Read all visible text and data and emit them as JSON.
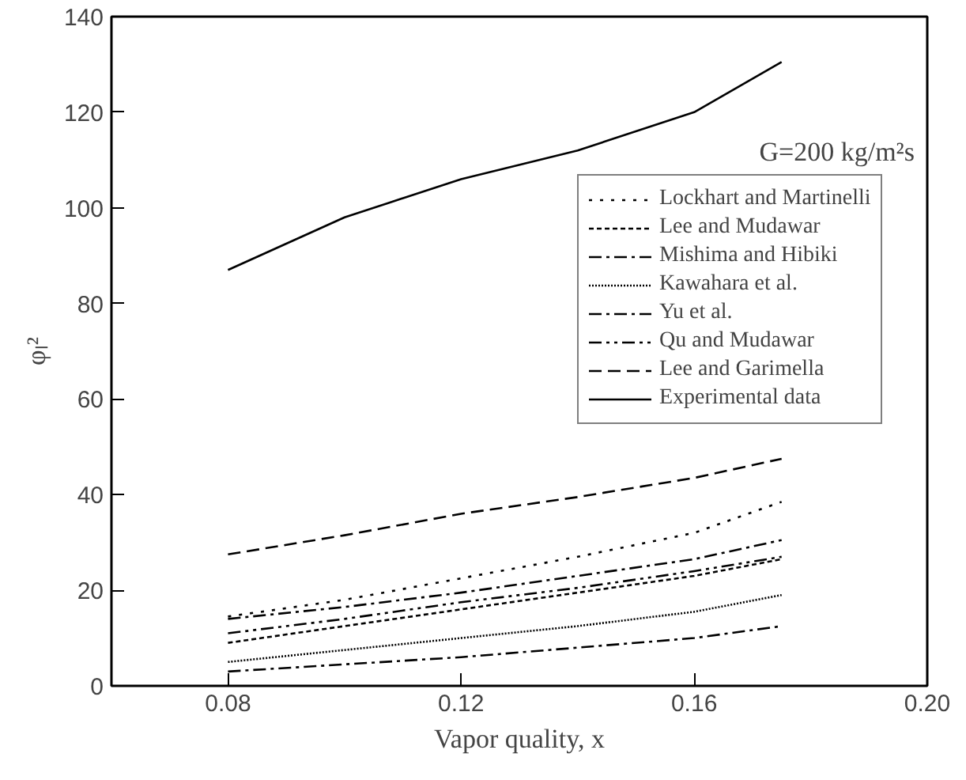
{
  "chart_data": {
    "type": "line",
    "xlabel": "Vapor quality, x",
    "ylabel": "φₗ²",
    "x": [
      0.08,
      0.1,
      0.12,
      0.14,
      0.16,
      0.175
    ],
    "series": [
      {
        "name": "Lockhart and Martinelli",
        "color": "#000000",
        "line_style": "dotted",
        "values": [
          14.5,
          18,
          22.5,
          27,
          32,
          38.5
        ]
      },
      {
        "name": "Lee and Mudawar",
        "color": "#000000",
        "line_style": "dashed_fine",
        "values": [
          9,
          12.5,
          16,
          19.5,
          23,
          26.5
        ]
      },
      {
        "name": "Mishima and Hibiki",
        "color": "#000000",
        "line_style": "dashdot",
        "values": [
          14,
          16.5,
          19.5,
          23,
          26.5,
          30.5
        ]
      },
      {
        "name": "Kawahara et al.",
        "color": "#000000",
        "line_style": "dense",
        "values": [
          5,
          7.5,
          10,
          12.5,
          15.5,
          19
        ]
      },
      {
        "name": "Yu et al.",
        "color": "#000000",
        "line_style": "dashdot",
        "values": [
          3,
          4.5,
          6,
          8,
          10,
          12.5
        ]
      },
      {
        "name": "Qu and Mudawar",
        "color": "#000000",
        "line_style": "dashdotdot",
        "values": [
          11,
          14,
          17.5,
          20.5,
          24,
          27
        ]
      },
      {
        "name": "Lee and Garimella",
        "color": "#000000",
        "line_style": "dashed",
        "values": [
          27.5,
          31.5,
          36,
          39.5,
          43.5,
          47.5
        ]
      },
      {
        "name": "Experimental data",
        "color": "#000000",
        "line_style": "solid",
        "values": [
          87,
          98,
          106,
          112,
          120,
          130.5
        ]
      }
    ],
    "xlim": [
      0.06,
      0.2
    ],
    "ylim": [
      0,
      140
    ],
    "xticks": [
      0.08,
      0.12,
      0.16,
      {
        "value": 0.2,
        "label": "0.20"
      }
    ],
    "yticks": [
      0,
      20,
      40,
      60,
      80,
      100,
      120,
      140
    ],
    "annotations": [
      "G=200 kg/m²s"
    ],
    "legend": "top right",
    "grid": false,
    "marker": "none"
  }
}
